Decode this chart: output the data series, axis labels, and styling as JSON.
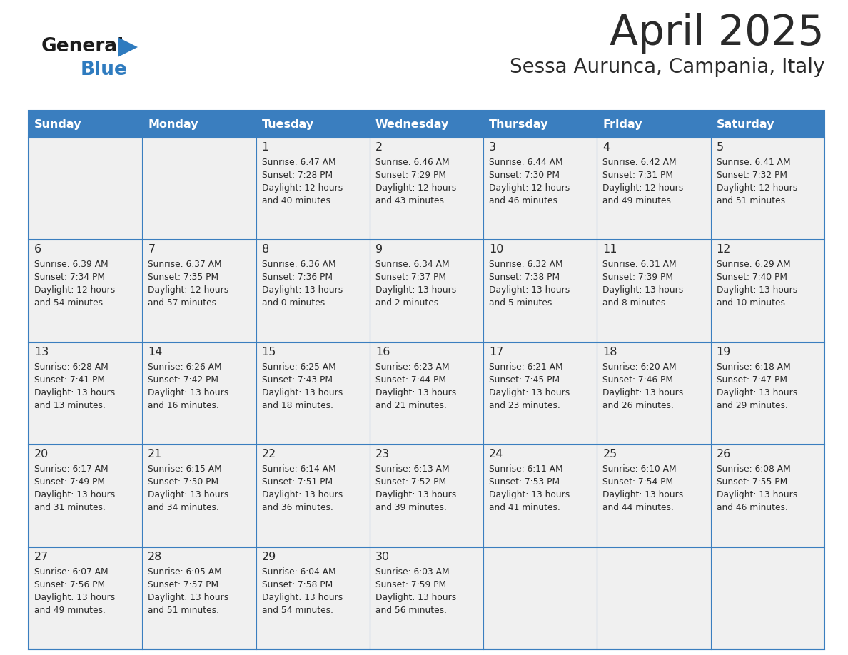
{
  "title": "April 2025",
  "subtitle": "Sessa Aurunca, Campania, Italy",
  "header_bg": "#3a7ebf",
  "header_text": "#ffffff",
  "cell_bg": "#f0f0f0",
  "day_headers": [
    "Sunday",
    "Monday",
    "Tuesday",
    "Wednesday",
    "Thursday",
    "Friday",
    "Saturday"
  ],
  "calendar": [
    [
      {
        "day": "",
        "sunrise": "",
        "sunset": "",
        "daylight": ""
      },
      {
        "day": "",
        "sunrise": "",
        "sunset": "",
        "daylight": ""
      },
      {
        "day": "1",
        "sunrise": "Sunrise: 6:47 AM",
        "sunset": "Sunset: 7:28 PM",
        "daylight": "Daylight: 12 hours\nand 40 minutes."
      },
      {
        "day": "2",
        "sunrise": "Sunrise: 6:46 AM",
        "sunset": "Sunset: 7:29 PM",
        "daylight": "Daylight: 12 hours\nand 43 minutes."
      },
      {
        "day": "3",
        "sunrise": "Sunrise: 6:44 AM",
        "sunset": "Sunset: 7:30 PM",
        "daylight": "Daylight: 12 hours\nand 46 minutes."
      },
      {
        "day": "4",
        "sunrise": "Sunrise: 6:42 AM",
        "sunset": "Sunset: 7:31 PM",
        "daylight": "Daylight: 12 hours\nand 49 minutes."
      },
      {
        "day": "5",
        "sunrise": "Sunrise: 6:41 AM",
        "sunset": "Sunset: 7:32 PM",
        "daylight": "Daylight: 12 hours\nand 51 minutes."
      }
    ],
    [
      {
        "day": "6",
        "sunrise": "Sunrise: 6:39 AM",
        "sunset": "Sunset: 7:34 PM",
        "daylight": "Daylight: 12 hours\nand 54 minutes."
      },
      {
        "day": "7",
        "sunrise": "Sunrise: 6:37 AM",
        "sunset": "Sunset: 7:35 PM",
        "daylight": "Daylight: 12 hours\nand 57 minutes."
      },
      {
        "day": "8",
        "sunrise": "Sunrise: 6:36 AM",
        "sunset": "Sunset: 7:36 PM",
        "daylight": "Daylight: 13 hours\nand 0 minutes."
      },
      {
        "day": "9",
        "sunrise": "Sunrise: 6:34 AM",
        "sunset": "Sunset: 7:37 PM",
        "daylight": "Daylight: 13 hours\nand 2 minutes."
      },
      {
        "day": "10",
        "sunrise": "Sunrise: 6:32 AM",
        "sunset": "Sunset: 7:38 PM",
        "daylight": "Daylight: 13 hours\nand 5 minutes."
      },
      {
        "day": "11",
        "sunrise": "Sunrise: 6:31 AM",
        "sunset": "Sunset: 7:39 PM",
        "daylight": "Daylight: 13 hours\nand 8 minutes."
      },
      {
        "day": "12",
        "sunrise": "Sunrise: 6:29 AM",
        "sunset": "Sunset: 7:40 PM",
        "daylight": "Daylight: 13 hours\nand 10 minutes."
      }
    ],
    [
      {
        "day": "13",
        "sunrise": "Sunrise: 6:28 AM",
        "sunset": "Sunset: 7:41 PM",
        "daylight": "Daylight: 13 hours\nand 13 minutes."
      },
      {
        "day": "14",
        "sunrise": "Sunrise: 6:26 AM",
        "sunset": "Sunset: 7:42 PM",
        "daylight": "Daylight: 13 hours\nand 16 minutes."
      },
      {
        "day": "15",
        "sunrise": "Sunrise: 6:25 AM",
        "sunset": "Sunset: 7:43 PM",
        "daylight": "Daylight: 13 hours\nand 18 minutes."
      },
      {
        "day": "16",
        "sunrise": "Sunrise: 6:23 AM",
        "sunset": "Sunset: 7:44 PM",
        "daylight": "Daylight: 13 hours\nand 21 minutes."
      },
      {
        "day": "17",
        "sunrise": "Sunrise: 6:21 AM",
        "sunset": "Sunset: 7:45 PM",
        "daylight": "Daylight: 13 hours\nand 23 minutes."
      },
      {
        "day": "18",
        "sunrise": "Sunrise: 6:20 AM",
        "sunset": "Sunset: 7:46 PM",
        "daylight": "Daylight: 13 hours\nand 26 minutes."
      },
      {
        "day": "19",
        "sunrise": "Sunrise: 6:18 AM",
        "sunset": "Sunset: 7:47 PM",
        "daylight": "Daylight: 13 hours\nand 29 minutes."
      }
    ],
    [
      {
        "day": "20",
        "sunrise": "Sunrise: 6:17 AM",
        "sunset": "Sunset: 7:49 PM",
        "daylight": "Daylight: 13 hours\nand 31 minutes."
      },
      {
        "day": "21",
        "sunrise": "Sunrise: 6:15 AM",
        "sunset": "Sunset: 7:50 PM",
        "daylight": "Daylight: 13 hours\nand 34 minutes."
      },
      {
        "day": "22",
        "sunrise": "Sunrise: 6:14 AM",
        "sunset": "Sunset: 7:51 PM",
        "daylight": "Daylight: 13 hours\nand 36 minutes."
      },
      {
        "day": "23",
        "sunrise": "Sunrise: 6:13 AM",
        "sunset": "Sunset: 7:52 PM",
        "daylight": "Daylight: 13 hours\nand 39 minutes."
      },
      {
        "day": "24",
        "sunrise": "Sunrise: 6:11 AM",
        "sunset": "Sunset: 7:53 PM",
        "daylight": "Daylight: 13 hours\nand 41 minutes."
      },
      {
        "day": "25",
        "sunrise": "Sunrise: 6:10 AM",
        "sunset": "Sunset: 7:54 PM",
        "daylight": "Daylight: 13 hours\nand 44 minutes."
      },
      {
        "day": "26",
        "sunrise": "Sunrise: 6:08 AM",
        "sunset": "Sunset: 7:55 PM",
        "daylight": "Daylight: 13 hours\nand 46 minutes."
      }
    ],
    [
      {
        "day": "27",
        "sunrise": "Sunrise: 6:07 AM",
        "sunset": "Sunset: 7:56 PM",
        "daylight": "Daylight: 13 hours\nand 49 minutes."
      },
      {
        "day": "28",
        "sunrise": "Sunrise: 6:05 AM",
        "sunset": "Sunset: 7:57 PM",
        "daylight": "Daylight: 13 hours\nand 51 minutes."
      },
      {
        "day": "29",
        "sunrise": "Sunrise: 6:04 AM",
        "sunset": "Sunset: 7:58 PM",
        "daylight": "Daylight: 13 hours\nand 54 minutes."
      },
      {
        "day": "30",
        "sunrise": "Sunrise: 6:03 AM",
        "sunset": "Sunset: 7:59 PM",
        "daylight": "Daylight: 13 hours\nand 56 minutes."
      },
      {
        "day": "",
        "sunrise": "",
        "sunset": "",
        "daylight": ""
      },
      {
        "day": "",
        "sunrise": "",
        "sunset": "",
        "daylight": ""
      },
      {
        "day": "",
        "sunrise": "",
        "sunset": "",
        "daylight": ""
      }
    ]
  ]
}
